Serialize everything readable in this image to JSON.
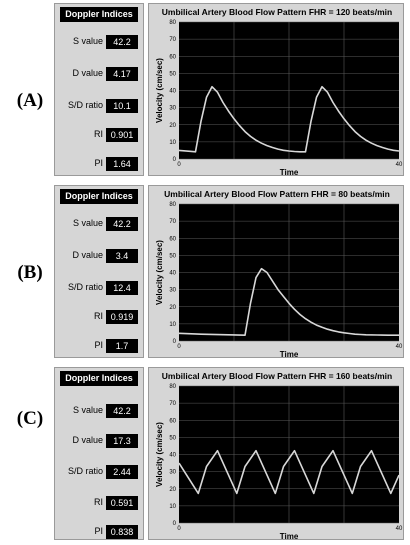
{
  "panels": [
    {
      "row_label": "(A)",
      "indices_title": "Doppler Indices",
      "metrics": [
        {
          "label": "S value",
          "value": "42.2"
        },
        {
          "label": "D value",
          "value": "4.17"
        },
        {
          "label": "S/D ratio",
          "value": "10.1"
        },
        {
          "label": "RI",
          "value": "0.901"
        },
        {
          "label": "PI",
          "value": "1.64"
        }
      ]
    },
    {
      "row_label": "(B)",
      "indices_title": "Doppler Indices",
      "metrics": [
        {
          "label": "S value",
          "value": "42.2"
        },
        {
          "label": "D value",
          "value": "3.4"
        },
        {
          "label": "S/D ratio",
          "value": "12.4"
        },
        {
          "label": "RI",
          "value": "0.919"
        },
        {
          "label": "PI",
          "value": "1.7"
        }
      ]
    },
    {
      "row_label": "(C)",
      "indices_title": "Doppler Indices",
      "metrics": [
        {
          "label": "S value",
          "value": "42.2"
        },
        {
          "label": "D value",
          "value": "17.3"
        },
        {
          "label": "S/D ratio",
          "value": "2.44"
        },
        {
          "label": "RI",
          "value": "0.591"
        },
        {
          "label": "PI",
          "value": "0.838"
        }
      ]
    }
  ],
  "chart_data": [
    {
      "type": "line",
      "title": "Umbilical Artery Blood Flow Pattern FHR = 120 beats/min",
      "xlabel": "Time",
      "ylabel": "Velocity (cm/sec)",
      "xlim": [
        0,
        40
      ],
      "ylim": [
        0,
        80
      ],
      "x_ticks": [
        "0",
        "40"
      ],
      "y_ticks": [
        "0",
        "10",
        "20",
        "30",
        "40",
        "50",
        "60",
        "70",
        "80"
      ],
      "grid": true,
      "series": [
        {
          "color": "#d8d8d8",
          "x": [
            0,
            2,
            3,
            4,
            5,
            6,
            7,
            8,
            9,
            10,
            11,
            12,
            13,
            14,
            15,
            16,
            17,
            18,
            19,
            20,
            21,
            22,
            23,
            24,
            25,
            26,
            27,
            28,
            29,
            30,
            31,
            32,
            33,
            34,
            35,
            36,
            37,
            38,
            39,
            40
          ],
          "y": [
            5,
            4.5,
            4.2,
            22,
            36,
            42.2,
            39,
            33,
            28,
            23.5,
            19.5,
            16,
            13.2,
            11,
            9.2,
            7.8,
            6.7,
            5.8,
            5.1,
            4.7,
            4.4,
            4.2,
            4.2,
            22,
            36,
            42.2,
            39,
            33,
            28,
            23.5,
            19.5,
            16,
            13.2,
            11,
            9.2,
            7.8,
            6.7,
            5.8,
            5.1,
            4.7
          ]
        }
      ]
    },
    {
      "type": "line",
      "title": "Umbilical Artery Blood Flow Pattern FHR = 80 beats/min",
      "xlabel": "Time",
      "ylabel": "Velocity (cm/sec)",
      "xlim": [
        0,
        40
      ],
      "ylim": [
        0,
        80
      ],
      "x_ticks": [
        "0",
        "40"
      ],
      "y_ticks": [
        "0",
        "10",
        "20",
        "30",
        "40",
        "50",
        "60",
        "70",
        "80"
      ],
      "grid": true,
      "series": [
        {
          "color": "#d8d8d8",
          "x": [
            0,
            4,
            8,
            12,
            13,
            14,
            15,
            16,
            17,
            18,
            19,
            20,
            21,
            22,
            23,
            24,
            25,
            26,
            27,
            28,
            29,
            30,
            31,
            32,
            33,
            34,
            36,
            38,
            40
          ],
          "y": [
            4.5,
            4,
            3.7,
            3.4,
            22,
            37,
            42.2,
            40,
            35,
            30,
            26,
            22,
            18.5,
            15.5,
            13,
            11,
            9.3,
            8,
            6.9,
            6,
            5.3,
            4.8,
            4.4,
            4,
            3.8,
            3.6,
            3.5,
            3.4,
            3.4
          ]
        }
      ]
    },
    {
      "type": "line",
      "title": "Umbilical Artery Blood Flow Pattern FHR = 160 beats/min",
      "xlabel": "Time",
      "ylabel": "Velocity (cm/sec)",
      "xlim": [
        0,
        40
      ],
      "ylim": [
        0,
        80
      ],
      "x_ticks": [
        "0",
        "40"
      ],
      "y_ticks": [
        "0",
        "10",
        "20",
        "30",
        "40",
        "50",
        "60",
        "70",
        "80"
      ],
      "grid": true,
      "series": [
        {
          "color": "#d8d8d8",
          "x": [
            0,
            3.5,
            5,
            7,
            10.5,
            12,
            14,
            17.5,
            19,
            21,
            24.5,
            26,
            28,
            31.5,
            33,
            35,
            38.5,
            40
          ],
          "y": [
            35,
            17.3,
            33,
            42.2,
            17.3,
            33,
            42.2,
            17.3,
            33,
            42.2,
            17.3,
            33,
            42.2,
            17.3,
            33,
            42.2,
            17.3,
            28
          ]
        }
      ]
    }
  ]
}
